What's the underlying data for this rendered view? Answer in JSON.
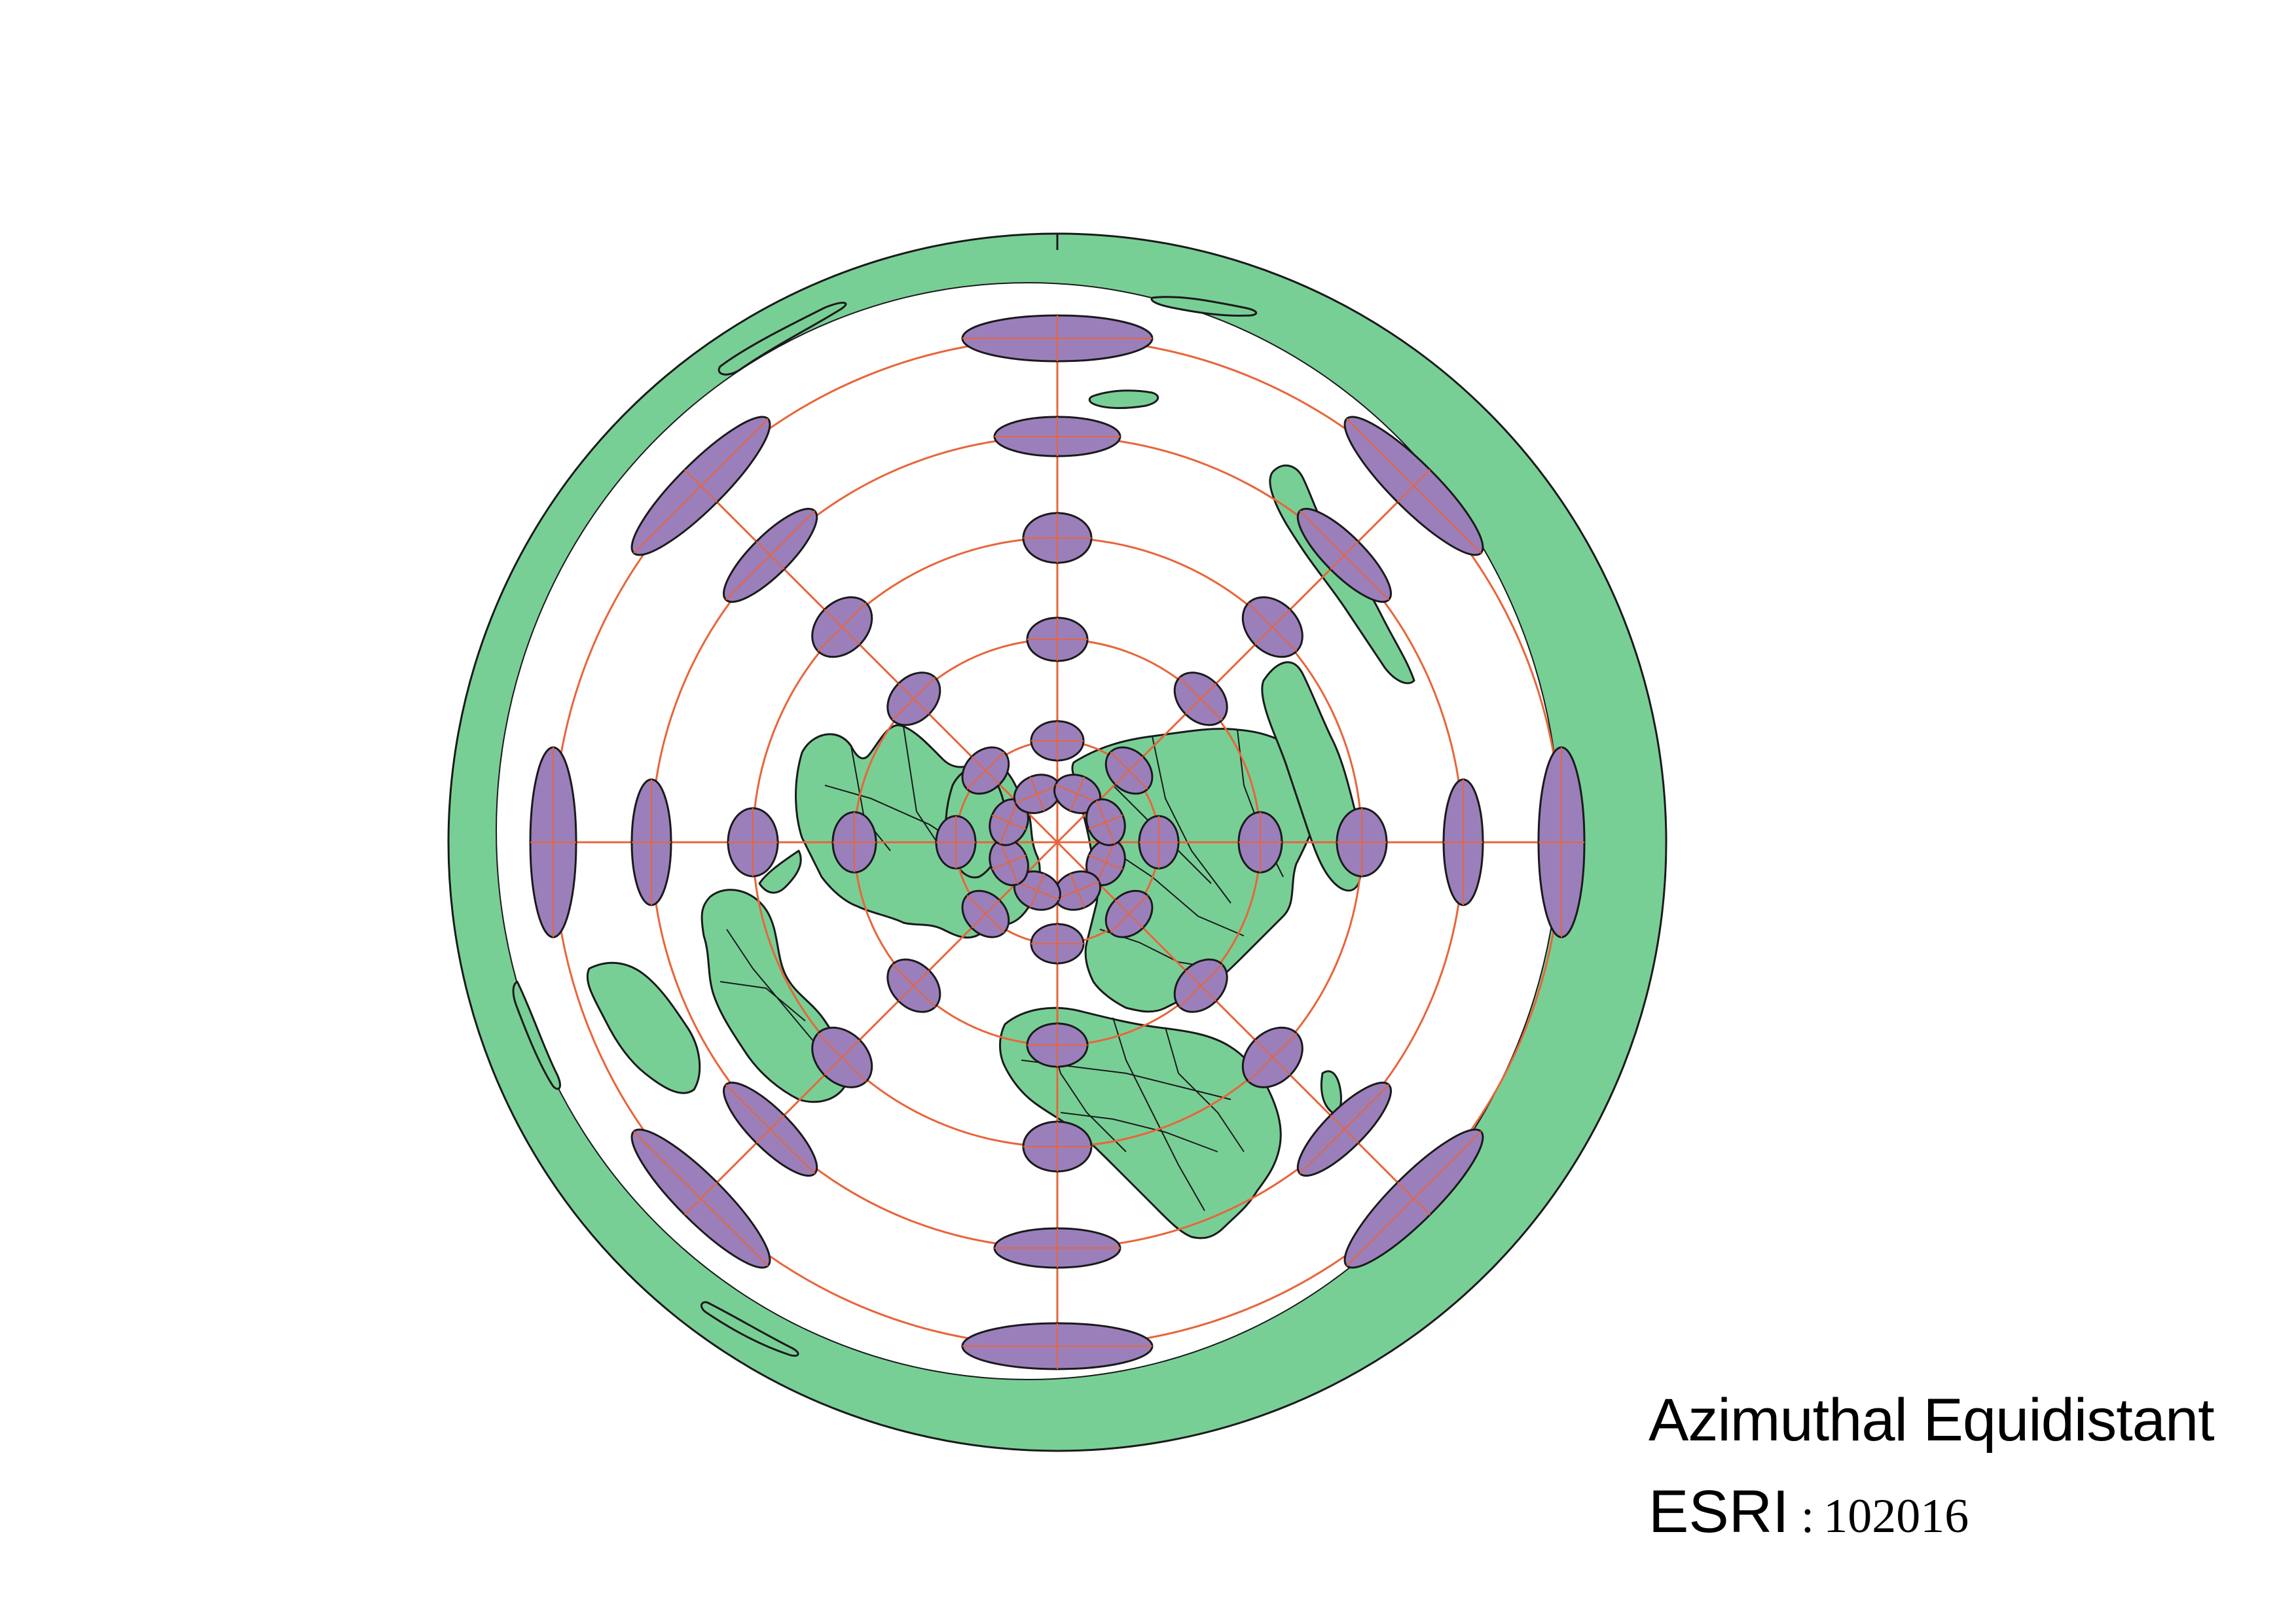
{
  "map": {
    "projection_name": "Azimuthal Equidistant",
    "authority": "ESRI",
    "code_separator": ":",
    "code": "102016",
    "colors": {
      "background": "#ffffff",
      "land": "#78cf96",
      "outline": "#1a1a1a",
      "graticule": "#e8653a",
      "tissot": "#9b7fbb"
    },
    "layers": [
      "land",
      "country-borders",
      "graticule",
      "tissot-indicatrices"
    ],
    "graticule": {
      "latitude_rings": 6,
      "meridians": 8
    },
    "tissot_rings": [
      {
        "count": 8
      },
      {
        "count": 8
      },
      {
        "count": 8
      },
      {
        "count": 8
      },
      {
        "count": 8
      },
      {
        "count": 8
      },
      {
        "count": 8
      }
    ]
  }
}
